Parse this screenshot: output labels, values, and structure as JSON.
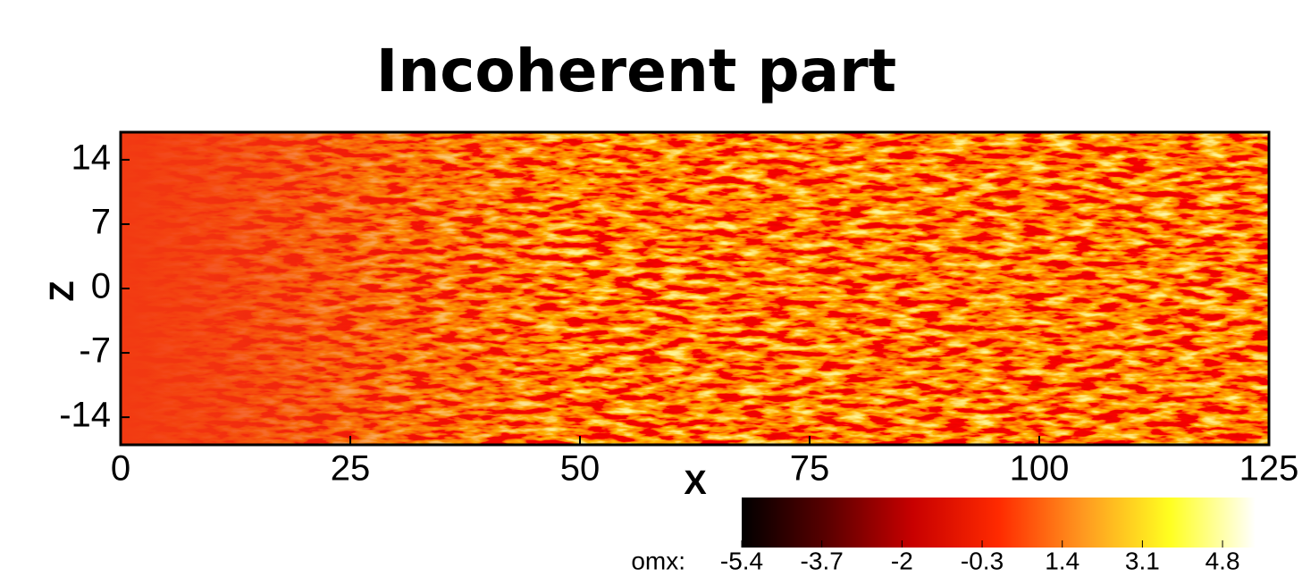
{
  "chart_data": {
    "type": "contour",
    "title": "Incoherent part",
    "x_label": "X",
    "y_label": "Z",
    "xlim": [
      0,
      125
    ],
    "xticks": [
      0,
      25,
      50,
      75,
      100,
      125
    ],
    "ylim": [
      -17,
      17
    ],
    "yticks": [
      -14,
      -7,
      0,
      7,
      14
    ],
    "colorbar_label": "omx:",
    "clim": [
      -5.4,
      5.5
    ],
    "cticks": [
      -5.4,
      -3.7,
      -2.0,
      -0.3,
      1.4,
      3.1,
      4.8
    ],
    "colormap": [
      "#000000",
      "#5a0000",
      "#c80000",
      "#ff2a00",
      "#ff9a20",
      "#ffff20",
      "#ffffff"
    ]
  }
}
